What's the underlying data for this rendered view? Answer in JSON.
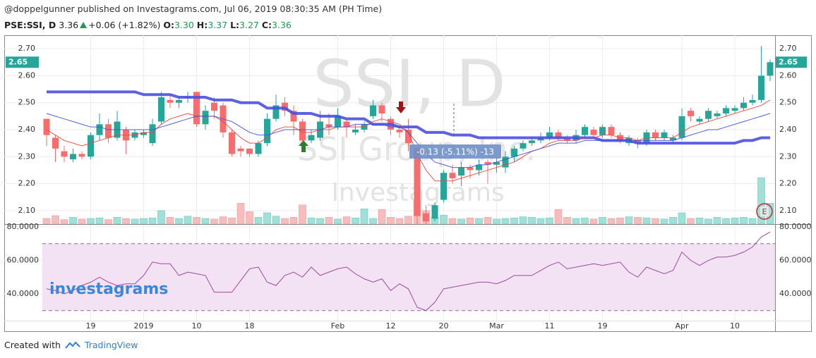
{
  "header": {
    "published": "@doppelgunner published on Investagrams.com, Jul 06, 2019 08:30:35 AM (PH Time)",
    "symbol": "PSE:SSI, D",
    "last": "3.36",
    "change": "+0.06 (+1.82%)",
    "open_label": "O:",
    "open": "3.30",
    "high_label": "H:",
    "high": "3.37",
    "low_label": "L:",
    "low": "3.27",
    "close_label": "C:",
    "close": "3.36"
  },
  "footer": {
    "created_with": "Created with",
    "brand": "TradingView"
  },
  "chart_data": {
    "type": "candlestick",
    "watermark_title": "SSI, D",
    "watermark_company": "SSI Group, Inc.",
    "watermark_brand": "Investagrams",
    "logo": "investagrams",
    "callout": "-0.13 (-5.11%) -13",
    "event_marker": "E",
    "categories": [
      null,
      null,
      null,
      null,
      null,
      "19",
      null,
      null,
      null,
      null,
      null,
      "2019",
      null,
      null,
      null,
      null,
      null,
      "10",
      null,
      null,
      null,
      null,
      null,
      "18",
      null,
      null,
      null,
      null,
      null,
      null,
      null,
      null,
      null,
      "Feb",
      null,
      null,
      null,
      null,
      null,
      "12",
      null,
      null,
      null,
      null,
      null,
      "20",
      null,
      null,
      null,
      null,
      null,
      "Mar",
      null,
      null,
      null,
      null,
      null,
      "11",
      null,
      null,
      null,
      null,
      null,
      "19",
      null,
      null,
      null,
      null,
      null,
      null,
      null,
      null,
      "Apr",
      null,
      null,
      null,
      null,
      null,
      "10",
      null,
      null,
      null,
      null
    ],
    "open": [
      2.44,
      2.37,
      2.32,
      2.29,
      2.31,
      2.3,
      2.38,
      2.42,
      2.37,
      2.4,
      2.37,
      2.38,
      2.35,
      2.43,
      2.51,
      2.5,
      2.52,
      2.54,
      2.42,
      2.5,
      2.49,
      2.39,
      2.33,
      2.33,
      2.31,
      2.35,
      2.44,
      2.5,
      2.47,
      2.43,
      2.36,
      2.37,
      2.42,
      2.41,
      2.43,
      2.39,
      2.4,
      2.45,
      2.49,
      2.44,
      2.4,
      2.4,
      2.33,
      2.09,
      2.07,
      2.14,
      2.24,
      2.23,
      2.26,
      2.25,
      2.28,
      2.27,
      2.26,
      2.3,
      2.33,
      2.35,
      2.36,
      2.37,
      2.39,
      2.37,
      2.36,
      2.38,
      2.4,
      2.38,
      2.41,
      2.38,
      2.35,
      2.36,
      2.35,
      2.39,
      2.37,
      2.36,
      2.37,
      2.47,
      2.43,
      2.44,
      2.45,
      2.46,
      2.47,
      2.48,
      2.5,
      2.51,
      2.6
    ],
    "high": [
      2.44,
      2.38,
      2.34,
      2.33,
      2.32,
      2.39,
      2.46,
      2.44,
      2.47,
      2.41,
      2.4,
      2.4,
      2.44,
      2.54,
      2.53,
      2.52,
      2.54,
      2.54,
      2.49,
      2.52,
      2.5,
      2.4,
      2.34,
      2.33,
      2.36,
      2.46,
      2.53,
      2.52,
      2.49,
      2.44,
      2.4,
      2.47,
      2.46,
      2.48,
      2.44,
      2.42,
      2.43,
      2.51,
      2.5,
      2.45,
      2.41,
      2.44,
      2.34,
      2.12,
      2.13,
      2.25,
      2.27,
      2.28,
      2.27,
      2.29,
      2.29,
      2.3,
      2.32,
      2.34,
      2.36,
      2.37,
      2.39,
      2.41,
      2.4,
      2.38,
      2.4,
      2.42,
      2.41,
      2.42,
      2.42,
      2.39,
      2.38,
      2.37,
      2.4,
      2.4,
      2.4,
      2.38,
      2.48,
      2.48,
      2.45,
      2.48,
      2.47,
      2.49,
      2.49,
      2.52,
      2.53,
      2.71,
      2.66
    ],
    "low": [
      2.34,
      2.28,
      2.28,
      2.28,
      2.29,
      2.29,
      2.36,
      2.35,
      2.36,
      2.31,
      2.36,
      2.37,
      2.34,
      2.42,
      2.48,
      2.48,
      2.5,
      2.41,
      2.4,
      2.44,
      2.37,
      2.3,
      2.3,
      2.3,
      2.3,
      2.34,
      2.43,
      2.45,
      2.38,
      2.34,
      2.35,
      2.36,
      2.38,
      2.4,
      2.37,
      2.38,
      2.39,
      2.44,
      2.43,
      2.38,
      2.37,
      2.32,
      2.05,
      2.04,
      2.06,
      2.13,
      2.2,
      2.19,
      2.22,
      2.23,
      2.2,
      2.24,
      2.24,
      2.28,
      2.32,
      2.34,
      2.35,
      2.36,
      2.36,
      2.35,
      2.35,
      2.37,
      2.37,
      2.37,
      2.37,
      2.35,
      2.34,
      2.33,
      2.34,
      2.36,
      2.36,
      2.35,
      2.36,
      2.43,
      2.42,
      2.43,
      2.44,
      2.45,
      2.46,
      2.47,
      2.49,
      2.5,
      2.58
    ],
    "close": [
      2.38,
      2.33,
      2.3,
      2.31,
      2.3,
      2.38,
      2.42,
      2.37,
      2.43,
      2.36,
      2.39,
      2.39,
      2.42,
      2.52,
      2.5,
      2.51,
      2.52,
      2.42,
      2.47,
      2.47,
      2.39,
      2.31,
      2.32,
      2.31,
      2.35,
      2.44,
      2.49,
      2.47,
      2.43,
      2.36,
      2.38,
      2.43,
      2.41,
      2.45,
      2.41,
      2.4,
      2.42,
      2.49,
      2.46,
      2.4,
      2.39,
      2.35,
      2.08,
      2.06,
      2.12,
      2.24,
      2.22,
      2.26,
      2.25,
      2.27,
      2.27,
      2.28,
      2.3,
      2.33,
      2.35,
      2.36,
      2.37,
      2.39,
      2.37,
      2.36,
      2.38,
      2.41,
      2.38,
      2.41,
      2.38,
      2.36,
      2.37,
      2.35,
      2.39,
      2.37,
      2.39,
      2.37,
      2.45,
      2.45,
      2.44,
      2.47,
      2.46,
      2.48,
      2.48,
      2.5,
      2.51,
      2.6,
      2.65
    ],
    "colors": {
      "up": "#26a69a",
      "down": "#f76c6c",
      "up_volume": "#9fe0d8",
      "down_volume": "#f8bcbc"
    },
    "volume": {
      "vlim": [
        0,
        100
      ],
      "values": [
        10,
        15,
        8,
        12,
        9,
        10,
        11,
        8,
        12,
        10,
        9,
        10,
        11,
        24,
        12,
        10,
        14,
        12,
        10,
        9,
        13,
        11,
        37,
        22,
        12,
        20,
        14,
        10,
        12,
        34,
        11,
        10,
        12,
        9,
        13,
        11,
        27,
        10,
        26,
        12,
        10,
        14,
        41,
        24,
        12,
        16,
        10,
        9,
        11,
        10,
        12,
        9,
        10,
        11,
        13,
        12,
        10,
        11,
        26,
        12,
        10,
        11,
        9,
        12,
        10,
        11,
        13,
        12,
        11,
        10,
        9,
        12,
        20,
        10,
        11,
        9,
        12,
        10,
        11,
        12,
        10,
        82,
        37
      ]
    },
    "lines": [
      {
        "color": "#4b4fe0",
        "width": 4,
        "values": [
          2.54,
          2.54,
          2.54,
          2.54,
          2.54,
          2.54,
          2.54,
          2.54,
          2.54,
          2.54,
          2.54,
          2.53,
          2.53,
          2.53,
          2.53,
          2.52,
          2.52,
          2.52,
          2.52,
          2.51,
          2.51,
          2.51,
          2.5,
          2.5,
          2.5,
          2.48,
          2.48,
          2.48,
          2.46,
          2.46,
          2.46,
          2.45,
          2.45,
          2.45,
          2.44,
          2.44,
          2.44,
          2.42,
          2.42,
          2.42,
          2.41,
          2.41,
          2.41,
          2.39,
          2.39,
          2.39,
          2.38,
          2.38,
          2.38,
          2.37,
          2.37,
          2.37,
          2.37,
          2.37,
          2.37,
          2.37,
          2.37,
          2.37,
          2.37,
          2.37,
          2.37,
          2.37,
          2.37,
          2.36,
          2.36,
          2.36,
          2.36,
          2.35,
          2.35,
          2.35,
          2.35,
          2.35,
          2.35,
          2.35,
          2.35,
          2.35,
          2.35,
          2.35,
          2.35,
          2.36,
          2.36,
          2.37,
          2.37
        ]
      },
      {
        "color": "#f0433a",
        "width": 1,
        "values": [
          2.4,
          2.38,
          2.36,
          2.35,
          2.34,
          2.35,
          2.36,
          2.37,
          2.38,
          2.38,
          2.38,
          2.39,
          2.39,
          2.42,
          2.44,
          2.45,
          2.46,
          2.45,
          2.45,
          2.45,
          2.43,
          2.4,
          2.37,
          2.35,
          2.35,
          2.37,
          2.4,
          2.41,
          2.41,
          2.39,
          2.39,
          2.4,
          2.4,
          2.41,
          2.41,
          2.41,
          2.41,
          2.43,
          2.44,
          2.43,
          2.42,
          2.39,
          2.31,
          2.25,
          2.21,
          2.21,
          2.21,
          2.22,
          2.23,
          2.24,
          2.25,
          2.26,
          2.27,
          2.28,
          2.3,
          2.32,
          2.33,
          2.35,
          2.36,
          2.36,
          2.36,
          2.37,
          2.37,
          2.38,
          2.38,
          2.37,
          2.37,
          2.36,
          2.37,
          2.37,
          2.37,
          2.37,
          2.39,
          2.41,
          2.42,
          2.43,
          2.44,
          2.45,
          2.46,
          2.47,
          2.48,
          2.49,
          2.51
        ]
      },
      {
        "color": "#3f4fd8",
        "width": 1,
        "values": [
          2.46,
          2.45,
          2.44,
          2.43,
          2.42,
          2.41,
          2.41,
          2.4,
          2.4,
          2.4,
          2.4,
          2.4,
          2.4,
          2.41,
          2.42,
          2.43,
          2.44,
          2.45,
          2.45,
          2.45,
          2.44,
          2.43,
          2.41,
          2.39,
          2.38,
          2.38,
          2.39,
          2.4,
          2.4,
          2.4,
          2.4,
          2.4,
          2.41,
          2.41,
          2.41,
          2.42,
          2.42,
          2.42,
          2.42,
          2.41,
          2.41,
          2.39,
          2.35,
          2.31,
          2.28,
          2.27,
          2.26,
          2.26,
          2.26,
          2.27,
          2.27,
          2.28,
          2.29,
          2.3,
          2.31,
          2.32,
          2.33,
          2.34,
          2.35,
          2.35,
          2.35,
          2.36,
          2.36,
          2.36,
          2.36,
          2.36,
          2.36,
          2.36,
          2.36,
          2.36,
          2.36,
          2.36,
          2.37,
          2.38,
          2.39,
          2.4,
          2.4,
          2.41,
          2.42,
          2.43,
          2.44,
          2.45,
          2.46
        ]
      }
    ],
    "ylim": [
      2.05,
      2.75
    ],
    "yticks": [
      {
        "value": 2.1,
        "label": "2.10"
      },
      {
        "value": 2.2,
        "label": "2.20"
      },
      {
        "value": 2.3,
        "label": "2.30"
      },
      {
        "value": 2.4,
        "label": "2.40"
      },
      {
        "value": 2.5,
        "label": "2.50"
      },
      {
        "value": 2.6,
        "label": "2.60"
      },
      {
        "value": 2.7,
        "label": "2.70"
      }
    ],
    "last_price": {
      "value": 2.65,
      "label": "2.65"
    },
    "grid": true,
    "rsi": {
      "color": "#9b4aa3",
      "band_fill": "#f3e2f3",
      "bands": [
        70,
        30
      ],
      "ylim": [
        24,
        81.7
      ],
      "yticks": [
        {
          "value": 40,
          "label": "40.0000"
        },
        {
          "value": 60,
          "label": "60.0000"
        },
        {
          "value": 80,
          "label": "80.0000"
        }
      ],
      "values": [
        43,
        42,
        40,
        42,
        45,
        47,
        50,
        47,
        45,
        46,
        46,
        51,
        59,
        58,
        58,
        51,
        53,
        52,
        51,
        41,
        41,
        41,
        48,
        55,
        56,
        47,
        45,
        51,
        53,
        50,
        56,
        51,
        53,
        55,
        56,
        52,
        49,
        47,
        49,
        42,
        46,
        43,
        32,
        30,
        35,
        43,
        44,
        45,
        46,
        47,
        47,
        46,
        48,
        51,
        51,
        51,
        54,
        57,
        59,
        55,
        56,
        57,
        58,
        57,
        58,
        59,
        53,
        50,
        56,
        54,
        52,
        54,
        65,
        60,
        57,
        60,
        62,
        62,
        63,
        65,
        68,
        74,
        77
      ]
    }
  }
}
